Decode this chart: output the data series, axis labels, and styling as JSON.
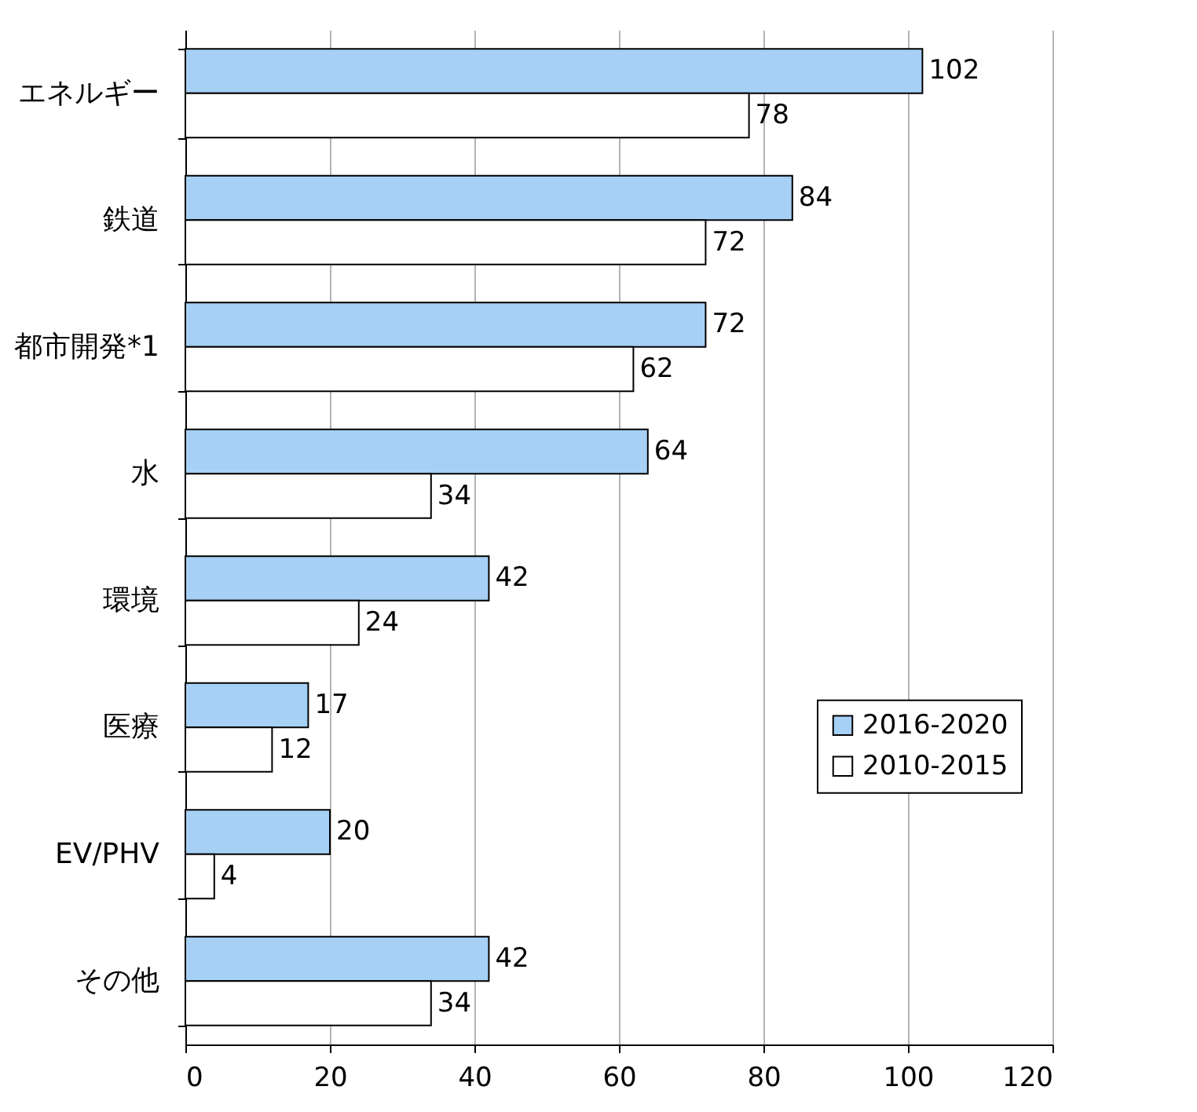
{
  "chart_data": {
    "type": "bar",
    "orientation": "horizontal",
    "categories": [
      "エネルギー",
      "鉄道",
      "都市開発*1",
      "水",
      "環境",
      "医療",
      "EV/PHV",
      "その他"
    ],
    "series": [
      {
        "name": "2016-2020",
        "color": "#a6d0f5",
        "values": [
          102,
          84,
          72,
          64,
          42,
          17,
          20,
          42
        ]
      },
      {
        "name": "2010-2015",
        "color": "#ffffff",
        "values": [
          78,
          72,
          62,
          34,
          24,
          12,
          4,
          34
        ]
      }
    ],
    "xlim": [
      0,
      120
    ],
    "xticks": [
      0,
      20,
      40,
      60,
      80,
      100,
      120
    ],
    "grid": "x",
    "legend": "right",
    "data_labels": true
  }
}
